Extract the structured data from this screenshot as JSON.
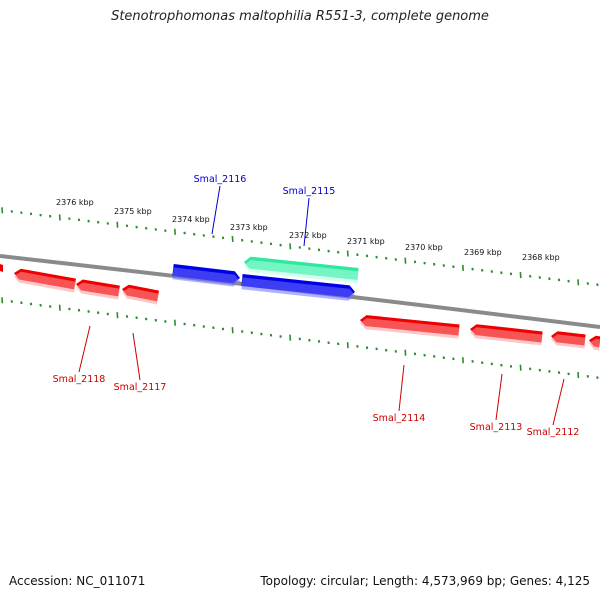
{
  "title": "Stenotrophomonas maltophilia R551-3, complete genome",
  "footer": {
    "accession": "Accession: NC_011071",
    "summary": "Topology: circular; Length: 4,573,969 bp; Genes: 4,125"
  },
  "colors": {
    "backbone": "#8a8a8a",
    "tick": "#2e8b2e",
    "forward_gene": "#0000e6",
    "forward_label": "#0000cc",
    "reverse_gene": "#ee0000",
    "reverse_label": "#cc0000",
    "highlight_gene": "#2ee8a0"
  },
  "scale_labels": [
    "2376 kbp",
    "2375 kbp",
    "2374 kbp",
    "2373 kbp",
    "2372 kbp",
    "2371 kbp",
    "2370 kbp",
    "2369 kbp",
    "2368 kbp"
  ],
  "forward_genes": [
    {
      "name": "Smal_2116",
      "color": "#0000e6"
    },
    {
      "name": "Smal_2115",
      "color": "#2ee8a0"
    }
  ],
  "forward_unlabeled": [
    {
      "color": "#0000e6"
    }
  ],
  "reverse_genes": [
    {
      "name": "Smal_2118"
    },
    {
      "name": "Smal_2117"
    },
    {
      "name": "Smal_2114"
    },
    {
      "name": "Smal_2113"
    },
    {
      "name": "Smal_2112"
    }
  ]
}
